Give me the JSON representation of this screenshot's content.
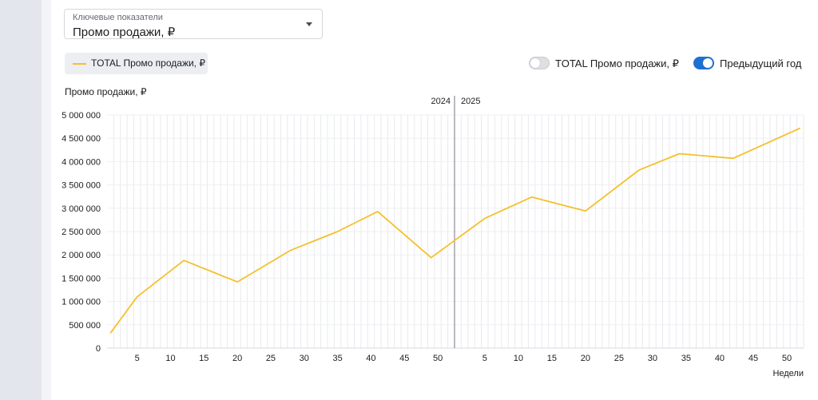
{
  "selector": {
    "label": "Ключевые показатели",
    "value": "Промо продажи, ₽"
  },
  "legend": {
    "series_label": "TOTAL Промо продажи, ₽",
    "color": "#f5c02a"
  },
  "toggles": {
    "total": {
      "label": "TOTAL  Промо продажи, ₽",
      "on": false
    },
    "previous_year": {
      "label": "Предыдущий год",
      "on": true
    }
  },
  "chart_data": {
    "type": "line",
    "ylabel": "Промо продажи, ₽",
    "xlabel": "Недели",
    "ylim": [
      0,
      5000000
    ],
    "y_ticks": [
      "0",
      "500 000",
      "1 000 000",
      "1 500 000",
      "2 000 000",
      "2 500 000",
      "3 000 000",
      "3 500 000",
      "4 000 000",
      "4 500 000",
      "5 000 000"
    ],
    "year_labels": [
      "2024",
      "2025"
    ],
    "x_ticks_2024": [
      "5",
      "10",
      "15",
      "20",
      "25",
      "30",
      "35",
      "40",
      "45",
      "50"
    ],
    "x_ticks_2025": [
      "5",
      "10",
      "15",
      "20",
      "25",
      "30",
      "35",
      "40",
      "45",
      "50"
    ],
    "grid": true,
    "series": [
      {
        "name": "TOTAL Промо продажи, ₽",
        "color": "#f5c02a",
        "points": [
          {
            "year": "2024",
            "week": 1,
            "value": 320000
          },
          {
            "year": "2024",
            "week": 5,
            "value": 1100000
          },
          {
            "year": "2024",
            "week": 12,
            "value": 1880000
          },
          {
            "year": "2024",
            "week": 20,
            "value": 1420000
          },
          {
            "year": "2024",
            "week": 28,
            "value": 2100000
          },
          {
            "year": "2024",
            "week": 35,
            "value": 2500000
          },
          {
            "year": "2024",
            "week": 41,
            "value": 2930000
          },
          {
            "year": "2024",
            "week": 49,
            "value": 1940000
          },
          {
            "year": "2025",
            "week": 5,
            "value": 2780000
          },
          {
            "year": "2025",
            "week": 12,
            "value": 3240000
          },
          {
            "year": "2025",
            "week": 20,
            "value": 2940000
          },
          {
            "year": "2025",
            "week": 28,
            "value": 3820000
          },
          {
            "year": "2025",
            "week": 34,
            "value": 4170000
          },
          {
            "year": "2025",
            "week": 42,
            "value": 4070000
          },
          {
            "year": "2025",
            "week": 52,
            "value": 4720000
          }
        ]
      }
    ]
  }
}
